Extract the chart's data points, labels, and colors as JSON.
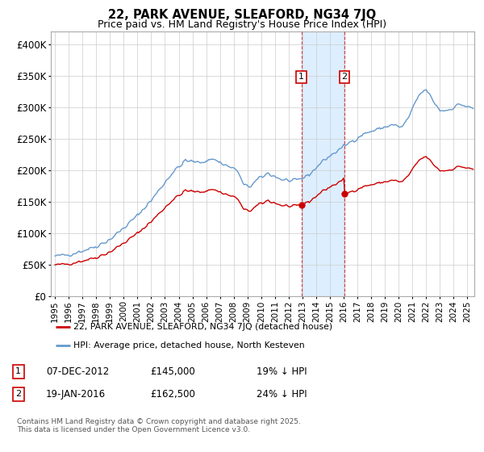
{
  "title": "22, PARK AVENUE, SLEAFORD, NG34 7JQ",
  "subtitle": "Price paid vs. HM Land Registry's House Price Index (HPI)",
  "legend_line1": "22, PARK AVENUE, SLEAFORD, NG34 7JQ (detached house)",
  "legend_line2": "HPI: Average price, detached house, North Kesteven",
  "line1_color": "#cc0000",
  "line2_color": "#6699cc",
  "annotation1_date": "07-DEC-2012",
  "annotation1_price": "£145,000",
  "annotation1_hpi": "19% ↓ HPI",
  "annotation2_date": "19-JAN-2016",
  "annotation2_price": "£162,500",
  "annotation2_hpi": "24% ↓ HPI",
  "footer": "Contains HM Land Registry data © Crown copyright and database right 2025.\nThis data is licensed under the Open Government Licence v3.0.",
  "background_color": "#ffffff",
  "grid_color": "#cccccc",
  "shade_color": "#ddeeff",
  "ylim": [
    0,
    420000
  ],
  "yticks": [
    0,
    50000,
    100000,
    150000,
    200000,
    250000,
    300000,
    350000,
    400000
  ],
  "ytick_labels": [
    "£0",
    "£50K",
    "£100K",
    "£150K",
    "£200K",
    "£250K",
    "£300K",
    "£350K",
    "£400K"
  ],
  "xlim_start": 1994.7,
  "xlim_end": 2025.5,
  "sale1_date": 2012.917,
  "sale1_price": 145000,
  "sale2_date": 2016.05,
  "sale2_price": 162500
}
